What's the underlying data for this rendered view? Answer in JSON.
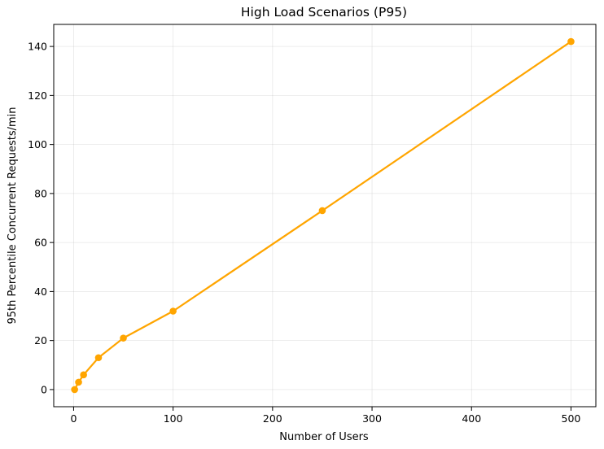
{
  "chart_data": {
    "type": "line",
    "title": "High Load Scenarios (P95)",
    "xlabel": "Number of Users",
    "ylabel": "95th Percentile Concurrent Requests/min",
    "xlim": [
      -20,
      525
    ],
    "ylim": [
      -7,
      149
    ],
    "xticks": [
      0,
      100,
      200,
      300,
      400,
      500
    ],
    "yticks": [
      0,
      20,
      40,
      60,
      80,
      100,
      120,
      140
    ],
    "grid": true,
    "series": [
      {
        "color": "#FFA500",
        "points": [
          {
            "x": 1,
            "y": 0
          },
          {
            "x": 5,
            "y": 3
          },
          {
            "x": 10,
            "y": 6
          },
          {
            "x": 25,
            "y": 13
          },
          {
            "x": 50,
            "y": 21
          },
          {
            "x": 100,
            "y": 32
          },
          {
            "x": 250,
            "y": 73
          },
          {
            "x": 500,
            "y": 142
          }
        ]
      }
    ]
  }
}
